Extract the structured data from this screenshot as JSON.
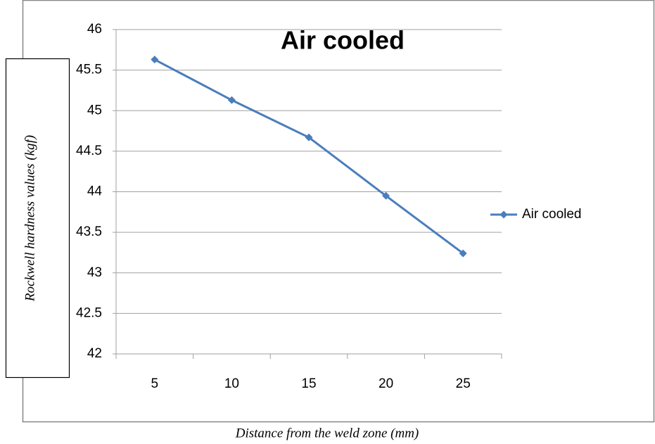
{
  "chart_data": {
    "type": "line",
    "title": "Air cooled",
    "x_label": "Distance from the weld zone (mm)",
    "y_label": "Rockwell hardness values (kgf)",
    "categories": [
      "5",
      "10",
      "15",
      "20",
      "25"
    ],
    "series": [
      {
        "name": "Air cooled",
        "color": "#4a7ebb",
        "values": [
          45.63,
          45.13,
          44.67,
          43.95,
          43.24
        ]
      }
    ],
    "ylim": [
      42,
      46
    ],
    "yticks": [
      42,
      42.5,
      43,
      43.5,
      44,
      44.5,
      45,
      45.5,
      46
    ],
    "grid": true,
    "legend": "right"
  }
}
